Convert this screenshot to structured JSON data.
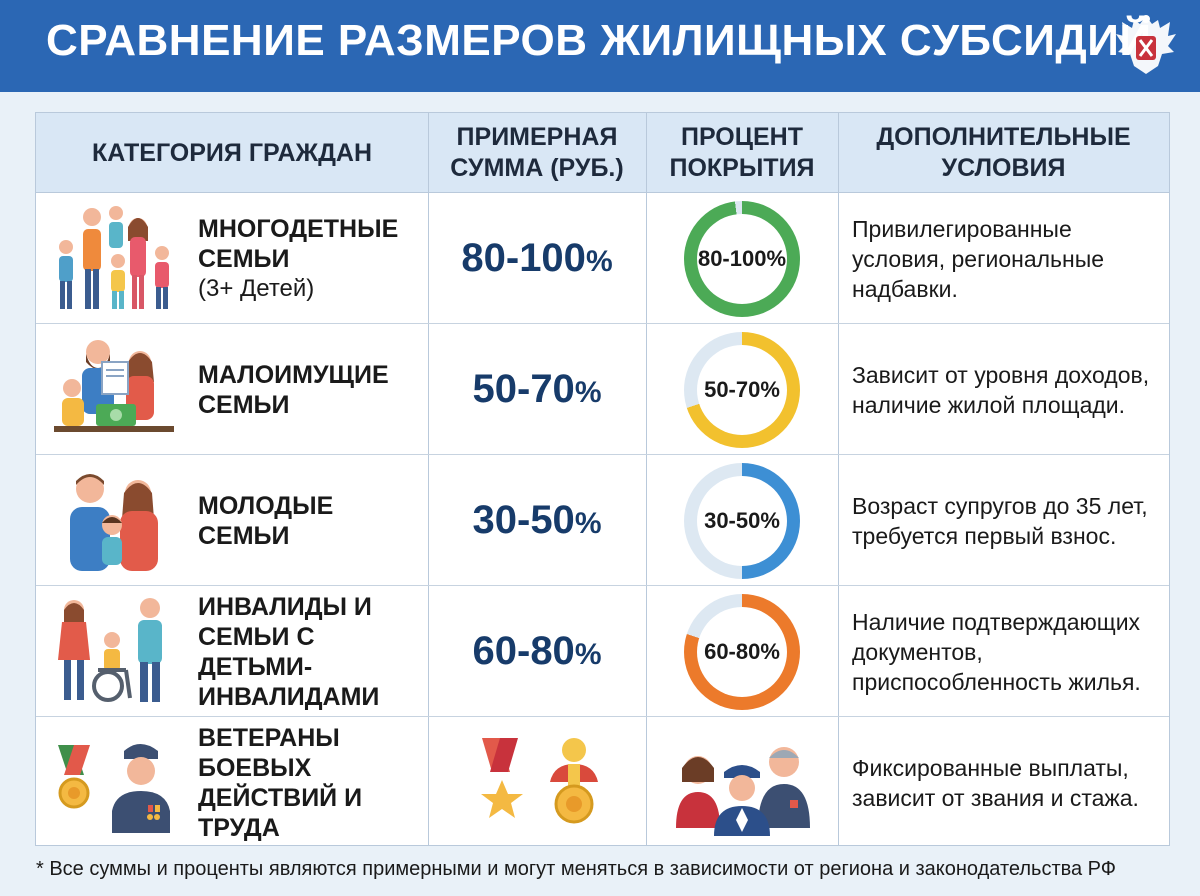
{
  "header": {
    "title": "СРАВНЕНИЕ РАЗМЕРОВ ЖИЛИЩНЫХ СУБСИДИЙ"
  },
  "table": {
    "columns": [
      "КАТЕГОРИЯ ГРАЖДАН",
      "ПРИМЕРНАЯ\nСУММА (РУБ.)",
      "ПРОЦЕНТ\nПОКРЫТИЯ",
      "ДОПОЛНИТЕЛЬНЫЕ\nУСЛОВИЯ"
    ],
    "rows": [
      {
        "icon": "large-family-icon",
        "category": "МНОГОДЕТНЫЕ\nСЕМЬИ",
        "note": "(3+ Детей)",
        "amount": "80-100",
        "amount_unit": "%",
        "coverage_label": "80-100%",
        "coverage_fraction": 0.98,
        "color": "#4caa56",
        "conditions": "Привилегированные\nусловия, региональные\nнадбавки."
      },
      {
        "icon": "low-income-family-icon",
        "category": "МАЛОИМУЩИЕ\nСЕМЬИ",
        "note": "",
        "amount": "50-70",
        "amount_unit": "%",
        "coverage_label": "50-70%",
        "coverage_fraction": 0.7,
        "color": "#f2c12e",
        "conditions": "Зависит от уровня доходов,\nналичие жилой площади."
      },
      {
        "icon": "young-family-icon",
        "category": "МОЛОДЫЕ\nСЕМЬИ",
        "note": "",
        "amount": "30-50",
        "amount_unit": "%",
        "coverage_label": "30-50%",
        "coverage_fraction": 0.5,
        "color": "#3d8fd4",
        "conditions": "Возраст супругов до 35 лет,\nтребуется первый взнос."
      },
      {
        "icon": "disabled-family-icon",
        "category": "ИНВАЛИДЫ И\nСЕМЬИ С ДЕТЬМИ-\nИНВАЛИДАМИ",
        "note": "",
        "amount": "60-80",
        "amount_unit": "%",
        "coverage_label": "60-80%",
        "coverage_fraction": 0.8,
        "color": "#ec7a2b",
        "conditions": "Наличие подтверждающих\nдокументов,\nприспособленность жилья."
      },
      {
        "icon": "veteran-medal-icon",
        "category": "ВЕТЕРАНЫ\nБОЕВЫХ\nДЕЙСТВИЙ И ТРУДА",
        "note": "",
        "amount_icon": "medals-icon",
        "coverage_icon": "veterans-group-icon",
        "conditions": "Фиксированные выплаты,\nзависит от звания и стажа."
      }
    ]
  },
  "footnote": "* Все суммы и проценты являются примерными и могут меняться в зависимости от региона и законодательства РФ",
  "colors": {
    "header_bg": "#2b67b4",
    "table_header_bg": "#d9e7f5",
    "amount_text": "#173b6a",
    "donut_track": "#dde8f2"
  }
}
